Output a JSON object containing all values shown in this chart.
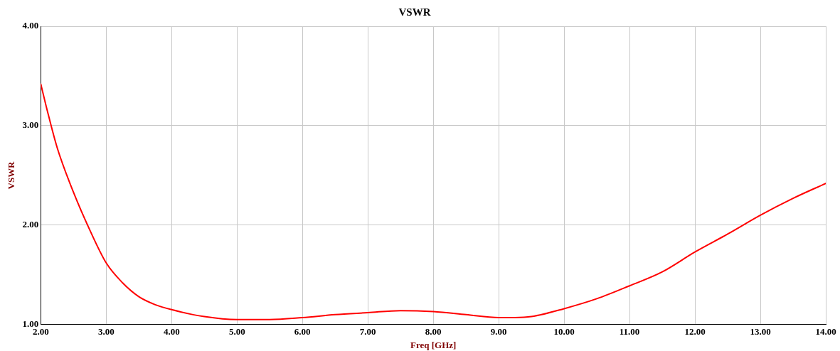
{
  "chart_data": {
    "type": "line",
    "title": "VSWR",
    "xlabel": "Freq [GHz]",
    "ylabel": "VSWR",
    "x": [
      2,
      2.1,
      2.25,
      2.5,
      2.75,
      3,
      3.25,
      3.5,
      3.75,
      4,
      4.5,
      5,
      5.5,
      6,
      6.5,
      7,
      7.5,
      8,
      8.5,
      9,
      9.25,
      9.5,
      10,
      10.5,
      11,
      11.5,
      12,
      12.5,
      13,
      13.5,
      14
    ],
    "series": [
      {
        "color": "#ff0000",
        "values": [
          3.42,
          3.15,
          2.78,
          2.33,
          1.95,
          1.62,
          1.42,
          1.28,
          1.2,
          1.15,
          1.08,
          1.05,
          1.05,
          1.07,
          1.1,
          1.12,
          1.14,
          1.13,
          1.1,
          1.07,
          1.07,
          1.08,
          1.16,
          1.26,
          1.39,
          1.53,
          1.73,
          1.91,
          2.1,
          2.27,
          2.42
        ]
      }
    ],
    "xlim": [
      2,
      14
    ],
    "ylim": [
      1,
      4
    ],
    "xticks": [
      {
        "value": 2,
        "label": "2.00"
      },
      {
        "value": 3,
        "label": "3.00"
      },
      {
        "value": 4,
        "label": "4.00"
      },
      {
        "value": 5,
        "label": "5.00"
      },
      {
        "value": 6,
        "label": "6.00"
      },
      {
        "value": 7,
        "label": "7.00"
      },
      {
        "value": 8,
        "label": "8.00"
      },
      {
        "value": 9,
        "label": "9.00"
      },
      {
        "value": 10,
        "label": "10.00"
      },
      {
        "value": 11,
        "label": "11.00"
      },
      {
        "value": 12,
        "label": "12.00"
      },
      {
        "value": 13,
        "label": "13.00"
      },
      {
        "value": 14,
        "label": "14.00"
      }
    ],
    "yticks": [
      {
        "value": 1,
        "label": "1.00"
      },
      {
        "value": 2,
        "label": "2.00"
      },
      {
        "value": 3,
        "label": "3.00"
      },
      {
        "value": 4,
        "label": "4.00"
      }
    ],
    "grid": true,
    "legend": false,
    "marker": "none",
    "line_style": "solid"
  }
}
